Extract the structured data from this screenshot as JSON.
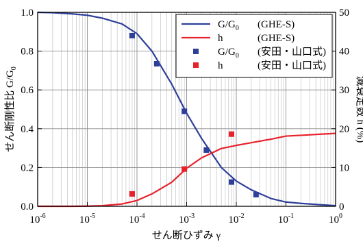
{
  "chart_data": {
    "type": "line",
    "title": "",
    "xlabel": "せん断ひずみ γ",
    "ylabel_left": "せん断剛性比 G/G0",
    "ylabel_right": "減衰定数 h (%)",
    "x_scale": "log",
    "xlim": [
      1e-06,
      1
    ],
    "ylim_left": [
      0.0,
      1.0
    ],
    "ylim_right": [
      0,
      50
    ],
    "grid": true,
    "legend_position": "top-right",
    "x_ticks": [
      {
        "value": 1e-06,
        "base": "10",
        "exp": "-6"
      },
      {
        "value": 1e-05,
        "base": "10",
        "exp": "-5"
      },
      {
        "value": 0.0001,
        "base": "10",
        "exp": "-4"
      },
      {
        "value": 0.001,
        "base": "10",
        "exp": "-3"
      },
      {
        "value": 0.01,
        "base": "10",
        "exp": "-2"
      },
      {
        "value": 0.1,
        "base": "10",
        "exp": "-1"
      },
      {
        "value": 1,
        "base": "10",
        "exp": "0"
      }
    ],
    "y_left_ticks": [
      {
        "value": 0.0,
        "label": "0.0"
      },
      {
        "value": 0.2,
        "label": "0.2"
      },
      {
        "value": 0.4,
        "label": "0.4"
      },
      {
        "value": 0.6,
        "label": "0.6"
      },
      {
        "value": 0.8,
        "label": "0.8"
      },
      {
        "value": 1.0,
        "label": "1.0"
      }
    ],
    "y_right_ticks": [
      {
        "value": 0,
        "label": "0"
      },
      {
        "value": 10,
        "label": "10"
      },
      {
        "value": 20,
        "label": "20"
      },
      {
        "value": 30,
        "label": "30"
      },
      {
        "value": 40,
        "label": "40"
      },
      {
        "value": 50,
        "label": "50"
      }
    ],
    "series": [
      {
        "name": "G/G0 (GHE-S)",
        "legend_main": "G/G",
        "legend_sub": "0",
        "legend_suffix": "(GHE-S)",
        "kind": "line",
        "axis": "left",
        "color": "#2e3f9a",
        "x": [
          1e-06,
          2e-06,
          5e-06,
          1e-05,
          2e-05,
          5e-05,
          0.0001,
          0.0002,
          0.0005,
          0.001,
          0.002,
          0.005,
          0.01,
          0.02,
          0.05,
          0.1,
          0.2,
          0.5,
          1
        ],
        "y": [
          1.0,
          0.998,
          0.992,
          0.985,
          0.97,
          0.94,
          0.89,
          0.8,
          0.63,
          0.48,
          0.35,
          0.2,
          0.13,
          0.085,
          0.04,
          0.022,
          0.015,
          0.008,
          0.003
        ]
      },
      {
        "name": "h (GHE-S)",
        "legend_main": "h",
        "legend_sub": "",
        "legend_suffix": "(GHE-S)",
        "kind": "line",
        "axis": "right",
        "color": "#e8212b",
        "x": [
          1e-06,
          5e-06,
          1e-05,
          2e-05,
          5e-05,
          0.0001,
          0.0002,
          0.0005,
          0.001,
          0.002,
          0.005,
          0.01,
          0.02,
          0.05,
          0.1,
          0.2,
          0.5,
          1
        ],
        "y": [
          0,
          0,
          0.05,
          0.15,
          0.6,
          1.5,
          3.2,
          6.2,
          9.8,
          12.5,
          14.9,
          15.7,
          16.4,
          17.3,
          18.1,
          18.3,
          18.6,
          18.8
        ]
      },
      {
        "name": "G/G0 (安田・山口式)",
        "legend_main": "G/G",
        "legend_sub": "0",
        "legend_suffix": "(安田・山口式)",
        "kind": "scatter",
        "axis": "left",
        "color": "#2e3f9a",
        "x": [
          8e-05,
          0.00025,
          0.0009,
          0.0025,
          0.008,
          0.025
        ],
        "y": [
          0.88,
          0.735,
          0.49,
          0.29,
          0.125,
          0.06
        ]
      },
      {
        "name": "h (安田・山口式)",
        "legend_main": "h",
        "legend_sub": "",
        "legend_suffix": "(安田・山口式)",
        "kind": "scatter",
        "axis": "right",
        "color": "#e8212b",
        "x": [
          8e-05,
          0.0009,
          0.008
        ],
        "y": [
          3.2,
          9.6,
          18.6
        ]
      }
    ]
  }
}
